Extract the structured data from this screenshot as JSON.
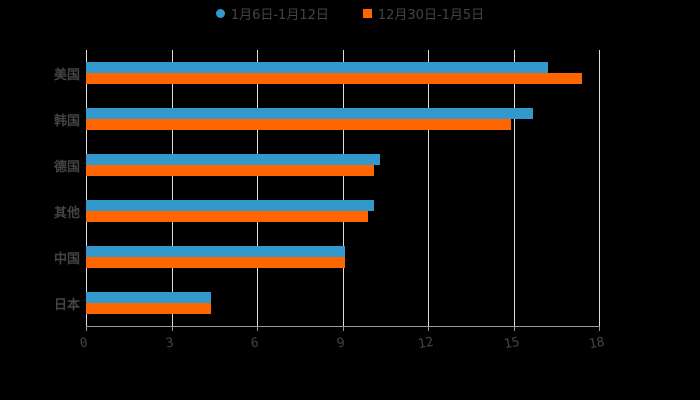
{
  "chart_data": {
    "type": "bar",
    "orientation": "horizontal",
    "title": "",
    "xlabel": "",
    "ylabel": "",
    "categories": [
      "美国",
      "韩国",
      "德国",
      "其他",
      "中国",
      "日本"
    ],
    "series": [
      {
        "name": "1月6日-1月12日",
        "color": "#3399cc",
        "values": [
          16.2,
          15.7,
          10.3,
          10.1,
          9.1,
          4.4
        ]
      },
      {
        "name": "12月30日-1月5日",
        "color": "#ff6600",
        "values": [
          17.4,
          14.9,
          10.1,
          9.9,
          9.1,
          4.4
        ]
      }
    ],
    "xlim": [
      0,
      18
    ],
    "xticks": [
      "0",
      "3",
      "6",
      "9",
      "12",
      "15",
      "18"
    ],
    "grid": true,
    "legend_position": "top"
  },
  "legend": {
    "series1": "1月6日-1月12日",
    "series2": "12月30日-1月5日"
  }
}
